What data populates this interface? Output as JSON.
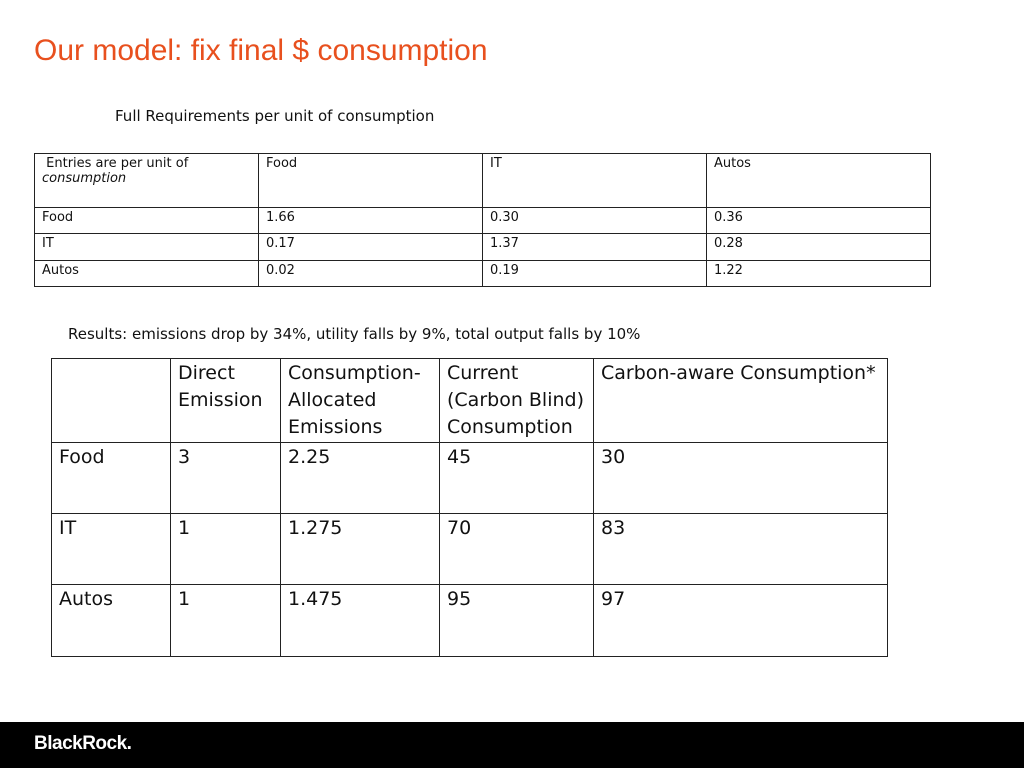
{
  "title": "Our model: fix final $ consumption",
  "requirements": {
    "caption": "Full Requirements per unit of consumption",
    "corner": {
      "text": "Entries are per unit of",
      "emphasis": "consumption"
    },
    "columns": [
      "Food",
      "IT",
      "Autos"
    ],
    "rows": [
      [
        "Food",
        "1.66",
        "0.30",
        "0.36"
      ],
      [
        "IT",
        "0.17",
        "1.37",
        "0.28"
      ],
      [
        "Autos",
        "0.02",
        "0.19",
        "1.22"
      ]
    ]
  },
  "results": {
    "caption": "Results:  emissions drop by 34%, utility falls by 9%, total output falls by 10%",
    "columns": [
      "Direct Emission",
      "Consumption-Allocated Emissions",
      "Current (Carbon Blind) Consumption",
      "Carbon-aware Consumption*"
    ],
    "rows": [
      [
        "Food",
        "3",
        "2.25",
        "45",
        "30"
      ],
      [
        "IT",
        "1",
        "1.275",
        "70",
        "83"
      ],
      [
        "Autos",
        "1",
        "1.475",
        "95",
        "97"
      ]
    ]
  },
  "footer": {
    "logo": "BlackRock."
  }
}
